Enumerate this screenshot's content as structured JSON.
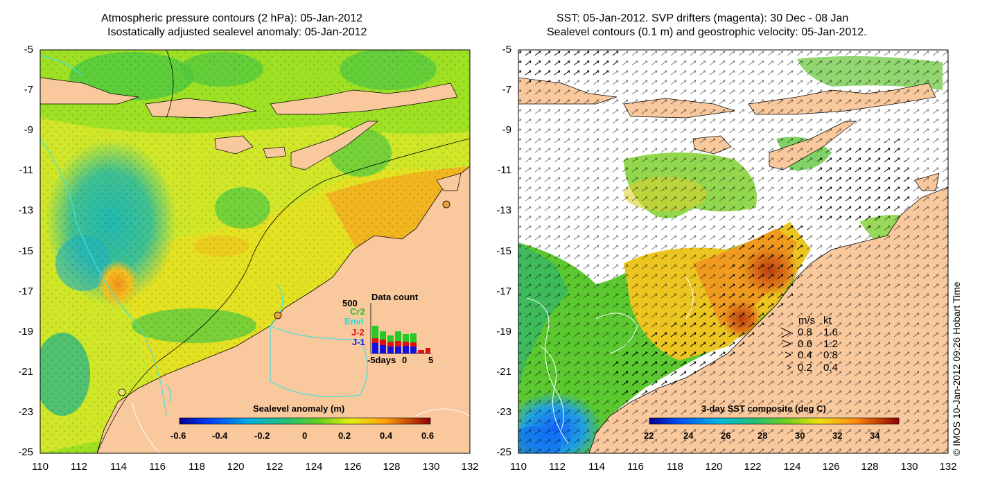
{
  "left_map": {
    "title_line1": "Atmospheric pressure contours (2 hPa): 05-Jan-2012",
    "title_line2": "Isostatically adjusted sealevel anomaly: 05-Jan-2012",
    "colorbar": {
      "label": "Sealevel anomaly (m)",
      "ticks": [
        "-0.6",
        "-0.4",
        "-0.2",
        "0",
        "0.2",
        "0.4",
        "0.6"
      ],
      "range": [
        -0.6,
        0.6
      ]
    },
    "data_count": {
      "title": "Data count",
      "max_label": "500",
      "series": [
        {
          "name": "Cr2",
          "color": "#22cc22"
        },
        {
          "name": "Envi",
          "color": "#22dddd"
        },
        {
          "name": "J-2",
          "color": "#dd1111"
        },
        {
          "name": "J-1",
          "color": "#1111dd"
        }
      ],
      "xlabel_start": "-5days",
      "xlabel_mid": "0",
      "xlabel_end": "5"
    }
  },
  "right_map": {
    "title_line1": "SST: 05-Jan-2012. SVP drifters (magenta): 30 Dec - 08 Jan",
    "title_line2": "Sealevel contours (0.1 m) and geostrophic velocity: 05-Jan-2012.",
    "colorbar": {
      "label": "3-day SST composite (deg C)",
      "ticks": [
        "22",
        "24",
        "26",
        "28",
        "30",
        "32",
        "34"
      ],
      "range": [
        22,
        35
      ]
    },
    "velocity_legend": {
      "header_ms": "m/s",
      "header_kt": "kt",
      "rows": [
        {
          "ms": "0.8",
          "kt": "1.6"
        },
        {
          "ms": "0.6",
          "kt": "1.2"
        },
        {
          "ms": "0.4",
          "kt": "0.8"
        },
        {
          "ms": "0.2",
          "kt": "0.4"
        }
      ]
    },
    "credit": "© IMOS 10-Jan-2012 09:26 Hobart Time"
  },
  "axes": {
    "lat_ticks": [
      "-5",
      "-7",
      "-9",
      "-11",
      "-13",
      "-15",
      "-17",
      "-19",
      "-21",
      "-23",
      "-25"
    ],
    "lon_ticks": [
      "110",
      "112",
      "114",
      "116",
      "118",
      "120",
      "122",
      "124",
      "126",
      "128",
      "130",
      "132"
    ]
  },
  "colors": {
    "land": "#f9c89d",
    "white_mask": "#ffffff"
  }
}
